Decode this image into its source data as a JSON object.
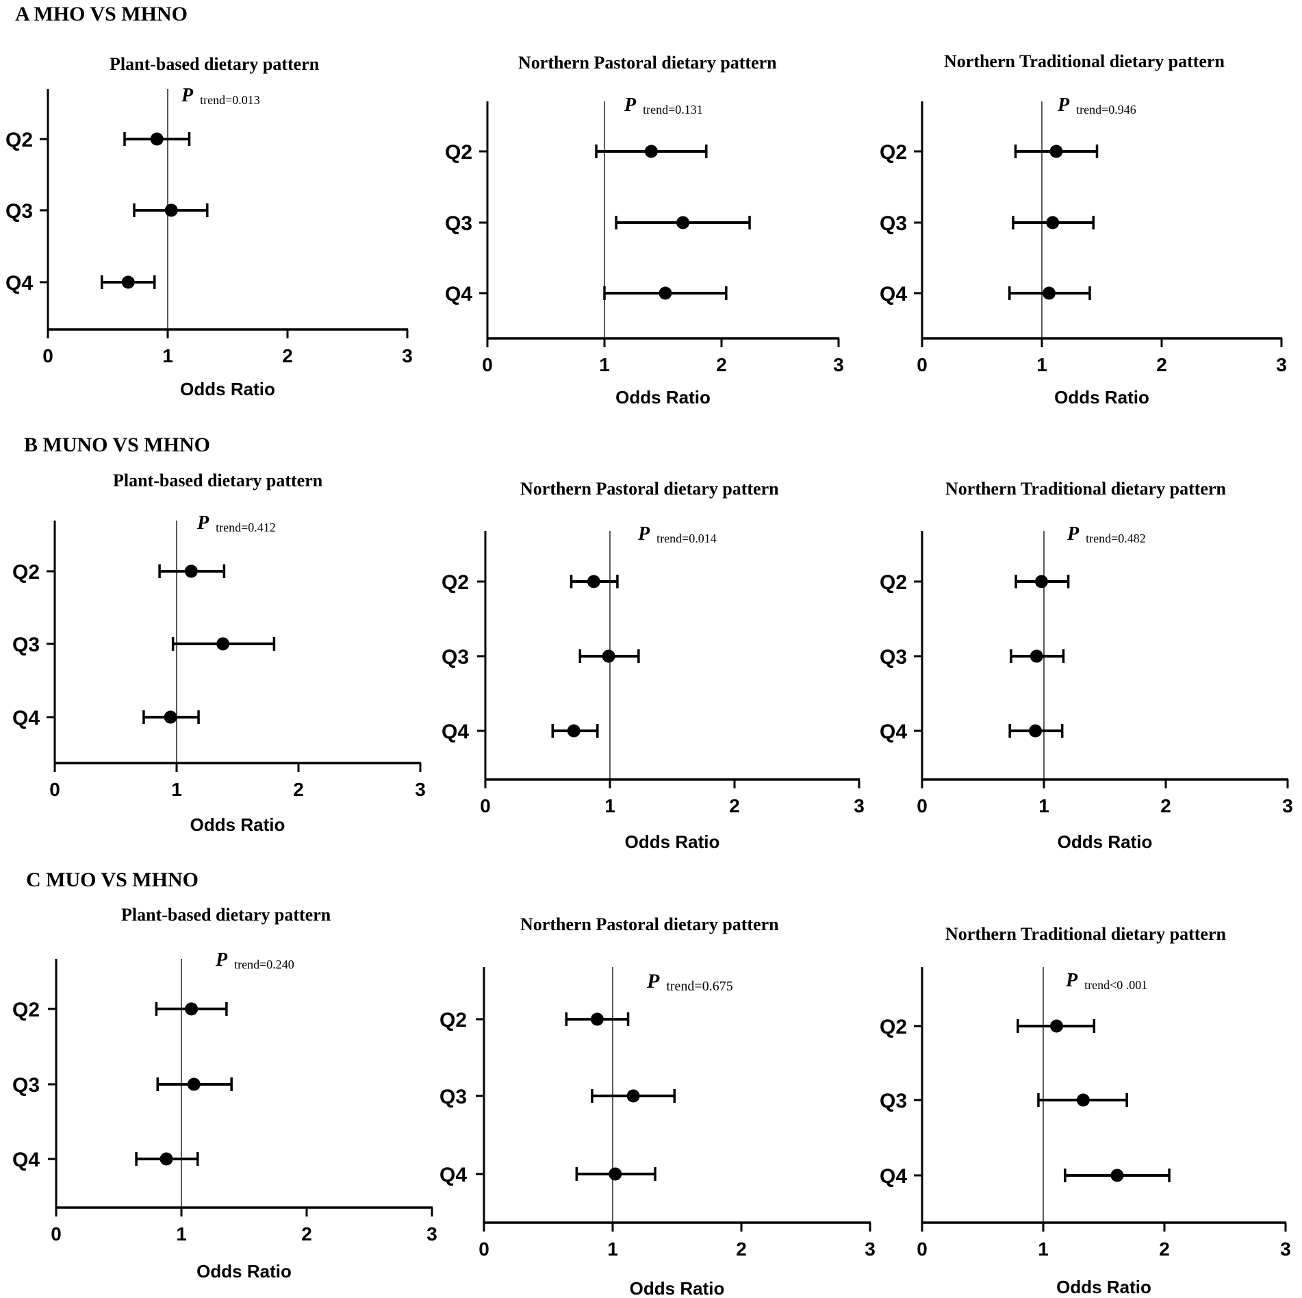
{
  "figure": {
    "rows": [
      {
        "id": "A",
        "label": "A MHO VS  MHNO"
      },
      {
        "id": "B",
        "label": "B MUNO VS MHNO"
      },
      {
        "id": "C",
        "label": "C MUO VS  MHNO"
      }
    ]
  },
  "chart_data": [
    {
      "type": "forest",
      "row": "A",
      "title": "Plant-based  dietary pattern",
      "p_symbol": "P",
      "p_text": "trend=0.013",
      "xlabel": "Odds Ratio",
      "xlim": [
        0,
        3
      ],
      "xticks": [
        "0",
        "1",
        "2",
        "3"
      ],
      "ref_line": 1,
      "categories": [
        "Q2",
        "Q3",
        "Q4"
      ],
      "or": [
        0.91,
        1.03,
        0.67
      ],
      "ci_low": [
        0.64,
        0.72,
        0.45
      ],
      "ci_high": [
        1.18,
        1.33,
        0.89
      ]
    },
    {
      "type": "forest",
      "row": "A",
      "title": "Northern Pastoral  dietary pattern",
      "p_symbol": "P",
      "p_text": "trend=0.131",
      "xlabel": "Odds Ratio",
      "xlim": [
        0,
        3
      ],
      "xticks": [
        "0",
        "1",
        "2",
        "3"
      ],
      "ref_line": 1,
      "categories": [
        "Q2",
        "Q3",
        "Q4"
      ],
      "or": [
        1.4,
        1.67,
        1.52
      ],
      "ci_low": [
        0.93,
        1.1,
        1.0
      ],
      "ci_high": [
        1.87,
        2.24,
        2.04
      ]
    },
    {
      "type": "forest",
      "row": "A",
      "title": "Northern Traditional dietary pattern",
      "p_symbol": "P",
      "p_text": "trend=0.946",
      "xlabel": "Odds Ratio",
      "xlim": [
        0,
        3
      ],
      "xticks": [
        "0",
        "1",
        "2",
        "3"
      ],
      "ref_line": 1,
      "categories": [
        "Q2",
        "Q3",
        "Q4"
      ],
      "or": [
        1.12,
        1.09,
        1.06
      ],
      "ci_low": [
        0.78,
        0.76,
        0.73
      ],
      "ci_high": [
        1.46,
        1.43,
        1.4
      ]
    },
    {
      "type": "forest",
      "row": "B",
      "title": "Plant-based  dietary pattern",
      "p_symbol": "P",
      "p_text": "trend=0.412",
      "xlabel": "Odds Ratio",
      "xlim": [
        0,
        3
      ],
      "xticks": [
        "0",
        "1",
        "2",
        "3"
      ],
      "ref_line": 1,
      "categories": [
        "Q2",
        "Q3",
        "Q4"
      ],
      "or": [
        1.12,
        1.38,
        0.95
      ],
      "ci_low": [
        0.86,
        0.97,
        0.73
      ],
      "ci_high": [
        1.39,
        1.8,
        1.18
      ]
    },
    {
      "type": "forest",
      "row": "B",
      "title": "Northern Pastoral  dietary pattern",
      "p_symbol": "P",
      "p_text": "trend=0.014",
      "xlabel": "Odds Ratio",
      "xlim": [
        0,
        3
      ],
      "xticks": [
        "0",
        "1",
        "2",
        "3"
      ],
      "ref_line": 1,
      "categories": [
        "Q2",
        "Q3",
        "Q4"
      ],
      "or": [
        0.87,
        0.99,
        0.71
      ],
      "ci_low": [
        0.69,
        0.76,
        0.54
      ],
      "ci_high": [
        1.06,
        1.23,
        0.9
      ]
    },
    {
      "type": "forest",
      "row": "B",
      "title": "Northern Traditional dietary pattern",
      "p_symbol": "P",
      "p_text": "trend=0.482",
      "xlabel": "Odds Ratio",
      "xlim": [
        0,
        3
      ],
      "xticks": [
        "0",
        "1",
        "2",
        "3"
      ],
      "ref_line": 1,
      "categories": [
        "Q2",
        "Q3",
        "Q4"
      ],
      "or": [
        0.98,
        0.94,
        0.93
      ],
      "ci_low": [
        0.77,
        0.73,
        0.72
      ],
      "ci_high": [
        1.2,
        1.16,
        1.15
      ]
    },
    {
      "type": "forest",
      "row": "C",
      "title": "Plant-based  dietary pattern",
      "p_symbol": "P",
      "p_text": "trend=0.240",
      "xlabel": "Odds Ratio",
      "xlim": [
        0,
        3
      ],
      "xticks": [
        "0",
        "1",
        "2",
        "3"
      ],
      "ref_line": 1,
      "categories": [
        "Q2",
        "Q3",
        "Q4"
      ],
      "or": [
        1.08,
        1.1,
        0.88
      ],
      "ci_low": [
        0.8,
        0.81,
        0.64
      ],
      "ci_high": [
        1.36,
        1.4,
        1.13
      ]
    },
    {
      "type": "forest",
      "row": "C",
      "title": "Northern Pastoral  dietary pattern",
      "p_symbol": "P",
      "p_text": "trend=0.675",
      "xlabel": "Odds Ratio",
      "xlim": [
        0,
        3
      ],
      "xticks": [
        "0",
        "1",
        "2",
        "3"
      ],
      "ref_line": 1,
      "categories": [
        "Q2",
        "Q3",
        "Q4"
      ],
      "or": [
        0.88,
        1.16,
        1.02
      ],
      "ci_low": [
        0.64,
        0.84,
        0.72
      ],
      "ci_high": [
        1.12,
        1.48,
        1.33
      ]
    },
    {
      "type": "forest",
      "row": "C",
      "title": "Northern Traditional dietary pattern",
      "p_symbol": "P",
      "p_text": "trend<0 .001",
      "xlabel": "Odds Ratio",
      "xlim": [
        0,
        3
      ],
      "xticks": [
        "0",
        "1",
        "2",
        "3"
      ],
      "ref_line": 1,
      "categories": [
        "Q2",
        "Q3",
        "Q4"
      ],
      "or": [
        1.11,
        1.33,
        1.61
      ],
      "ci_low": [
        0.79,
        0.96,
        1.18
      ],
      "ci_high": [
        1.42,
        1.69,
        2.04
      ]
    }
  ]
}
